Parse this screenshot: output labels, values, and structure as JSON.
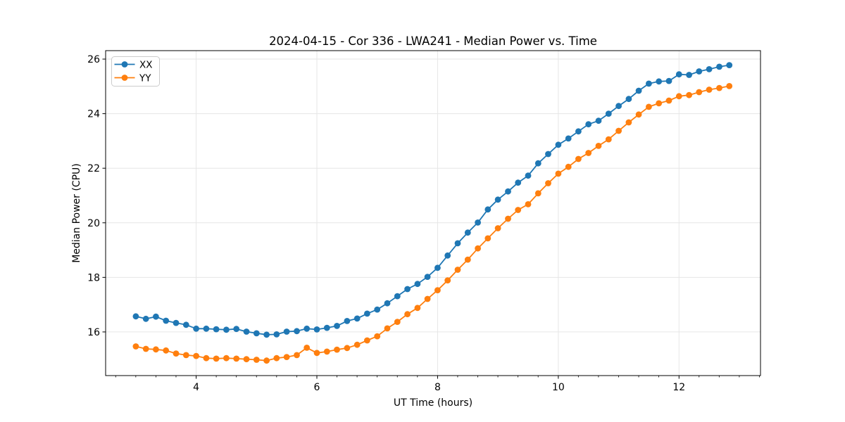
{
  "figure": {
    "title": "2024-04-15 - Cor 336 - LWA241 - Median Power vs. Time",
    "xlabel": "UT Time (hours)",
    "ylabel": "Median Power (CPU)"
  },
  "legend": {
    "position": "upper left",
    "items": [
      {
        "label": "XX",
        "color": "#1f77b4"
      },
      {
        "label": "YY",
        "color": "#ff7f0e"
      }
    ]
  },
  "colors": {
    "series_xx": "#1f77b4",
    "series_yy": "#ff7f0e",
    "grid": "#e6e6e6",
    "spine": "#000000",
    "background": "#ffffff"
  },
  "chart_data": {
    "type": "line",
    "title": "2024-04-15 - Cor 336 - LWA241 - Median Power vs. Time",
    "xlabel": "UT Time (hours)",
    "ylabel": "Median Power (CPU)",
    "xlim": [
      2.5,
      13.35
    ],
    "ylim": [
      14.4,
      26.31
    ],
    "xticks": [
      4,
      6,
      8,
      10,
      12
    ],
    "yticks": [
      16,
      18,
      20,
      22,
      24,
      26
    ],
    "x_minor_tick_step": 0.3333,
    "grid": true,
    "legend_position": "upper left",
    "marker": "o",
    "x": [
      3.0,
      3.167,
      3.333,
      3.5,
      3.667,
      3.833,
      4.0,
      4.167,
      4.333,
      4.5,
      4.667,
      4.833,
      5.0,
      5.167,
      5.333,
      5.5,
      5.667,
      5.833,
      6.0,
      6.167,
      6.333,
      6.5,
      6.667,
      6.833,
      7.0,
      7.167,
      7.333,
      7.5,
      7.667,
      7.833,
      8.0,
      8.167,
      8.333,
      8.5,
      8.667,
      8.833,
      9.0,
      9.167,
      9.333,
      9.5,
      9.667,
      9.833,
      10.0,
      10.167,
      10.333,
      10.5,
      10.667,
      10.833,
      11.0,
      11.167,
      11.333,
      11.5,
      11.667,
      11.833,
      12.0,
      12.167,
      12.333,
      12.5,
      12.667,
      12.833
    ],
    "series": [
      {
        "name": "XX",
        "color": "#1f77b4",
        "values": [
          16.57,
          16.48,
          16.56,
          16.41,
          16.33,
          16.26,
          16.12,
          16.12,
          16.1,
          16.08,
          16.11,
          16.01,
          15.95,
          15.9,
          15.91,
          16.01,
          16.03,
          16.12,
          16.09,
          16.15,
          16.22,
          16.4,
          16.49,
          16.67,
          16.82,
          17.05,
          17.31,
          17.57,
          17.76,
          18.02,
          18.35,
          18.8,
          19.25,
          19.64,
          20.01,
          20.49,
          20.85,
          21.15,
          21.47,
          21.73,
          22.18,
          22.52,
          22.86,
          23.09,
          23.35,
          23.61,
          23.74,
          24.0,
          24.28,
          24.54,
          24.84,
          25.1,
          25.18,
          25.2,
          25.44,
          25.42,
          25.55,
          25.63,
          25.72,
          25.78
        ]
      },
      {
        "name": "YY",
        "color": "#ff7f0e",
        "values": [
          15.47,
          15.38,
          15.36,
          15.32,
          15.21,
          15.15,
          15.12,
          15.04,
          15.02,
          15.04,
          15.02,
          15.0,
          14.98,
          14.95,
          15.04,
          15.08,
          15.15,
          15.42,
          15.23,
          15.28,
          15.35,
          15.41,
          15.53,
          15.69,
          15.84,
          16.13,
          16.37,
          16.65,
          16.88,
          17.21,
          17.53,
          17.89,
          18.28,
          18.65,
          19.06,
          19.43,
          19.8,
          20.15,
          20.47,
          20.68,
          21.08,
          21.45,
          21.8,
          22.05,
          22.34,
          22.56,
          22.82,
          23.06,
          23.37,
          23.68,
          23.97,
          24.25,
          24.38,
          24.48,
          24.64,
          24.68,
          24.79,
          24.88,
          24.94,
          25.01
        ]
      }
    ]
  }
}
